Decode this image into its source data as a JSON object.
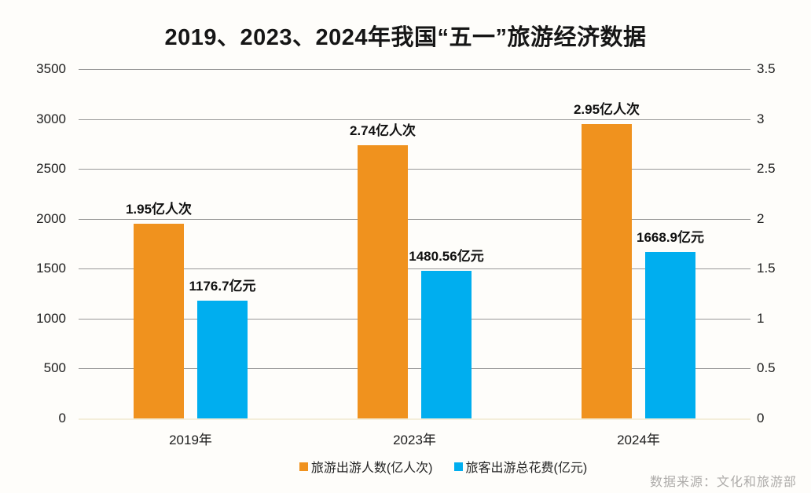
{
  "title": "2019、2023、2024年我国“五一”旅游经济数据",
  "source_note": "数据来源：文化和旅游部",
  "colors": {
    "visitors": "#F0921E",
    "spending": "#00AEEF",
    "gridline": "#989898",
    "zero_line": "#F4EEDA",
    "text": "#111111",
    "source_text": "#AEACAA",
    "background": "#FEFDFA"
  },
  "chart_data": {
    "type": "bar",
    "categories": [
      "2019年",
      "2023年",
      "2024年"
    ],
    "series": [
      {
        "name": "旅游出游人数(亿人次)",
        "axis": "right",
        "color_key": "visitors",
        "values": [
          1.95,
          2.74,
          2.95
        ],
        "value_labels": [
          "1.95亿人次",
          "2.74亿人次",
          "2.95亿人次"
        ]
      },
      {
        "name": "旅客出游总花费(亿元)",
        "axis": "left",
        "color_key": "spending",
        "values": [
          1176.7,
          1480.56,
          1668.9
        ],
        "value_labels": [
          "1176.7亿元",
          "1480.56亿元",
          "1668.9亿元"
        ]
      }
    ],
    "left_axis": {
      "min": 0,
      "max": 3500,
      "ticks": [
        0,
        500,
        1000,
        1500,
        2000,
        2500,
        3000,
        3500
      ]
    },
    "right_axis": {
      "min": 0,
      "max": 3.5,
      "ticks": [
        0,
        0.5,
        1,
        1.5,
        2,
        2.5,
        3,
        3.5
      ]
    },
    "grid": true,
    "legend_position": "bottom"
  },
  "legend": {
    "items": [
      {
        "label": "旅游出游人数(亿人次)",
        "color_key": "visitors"
      },
      {
        "label": "旅客出游总花费(亿元)",
        "color_key": "spending"
      }
    ]
  }
}
